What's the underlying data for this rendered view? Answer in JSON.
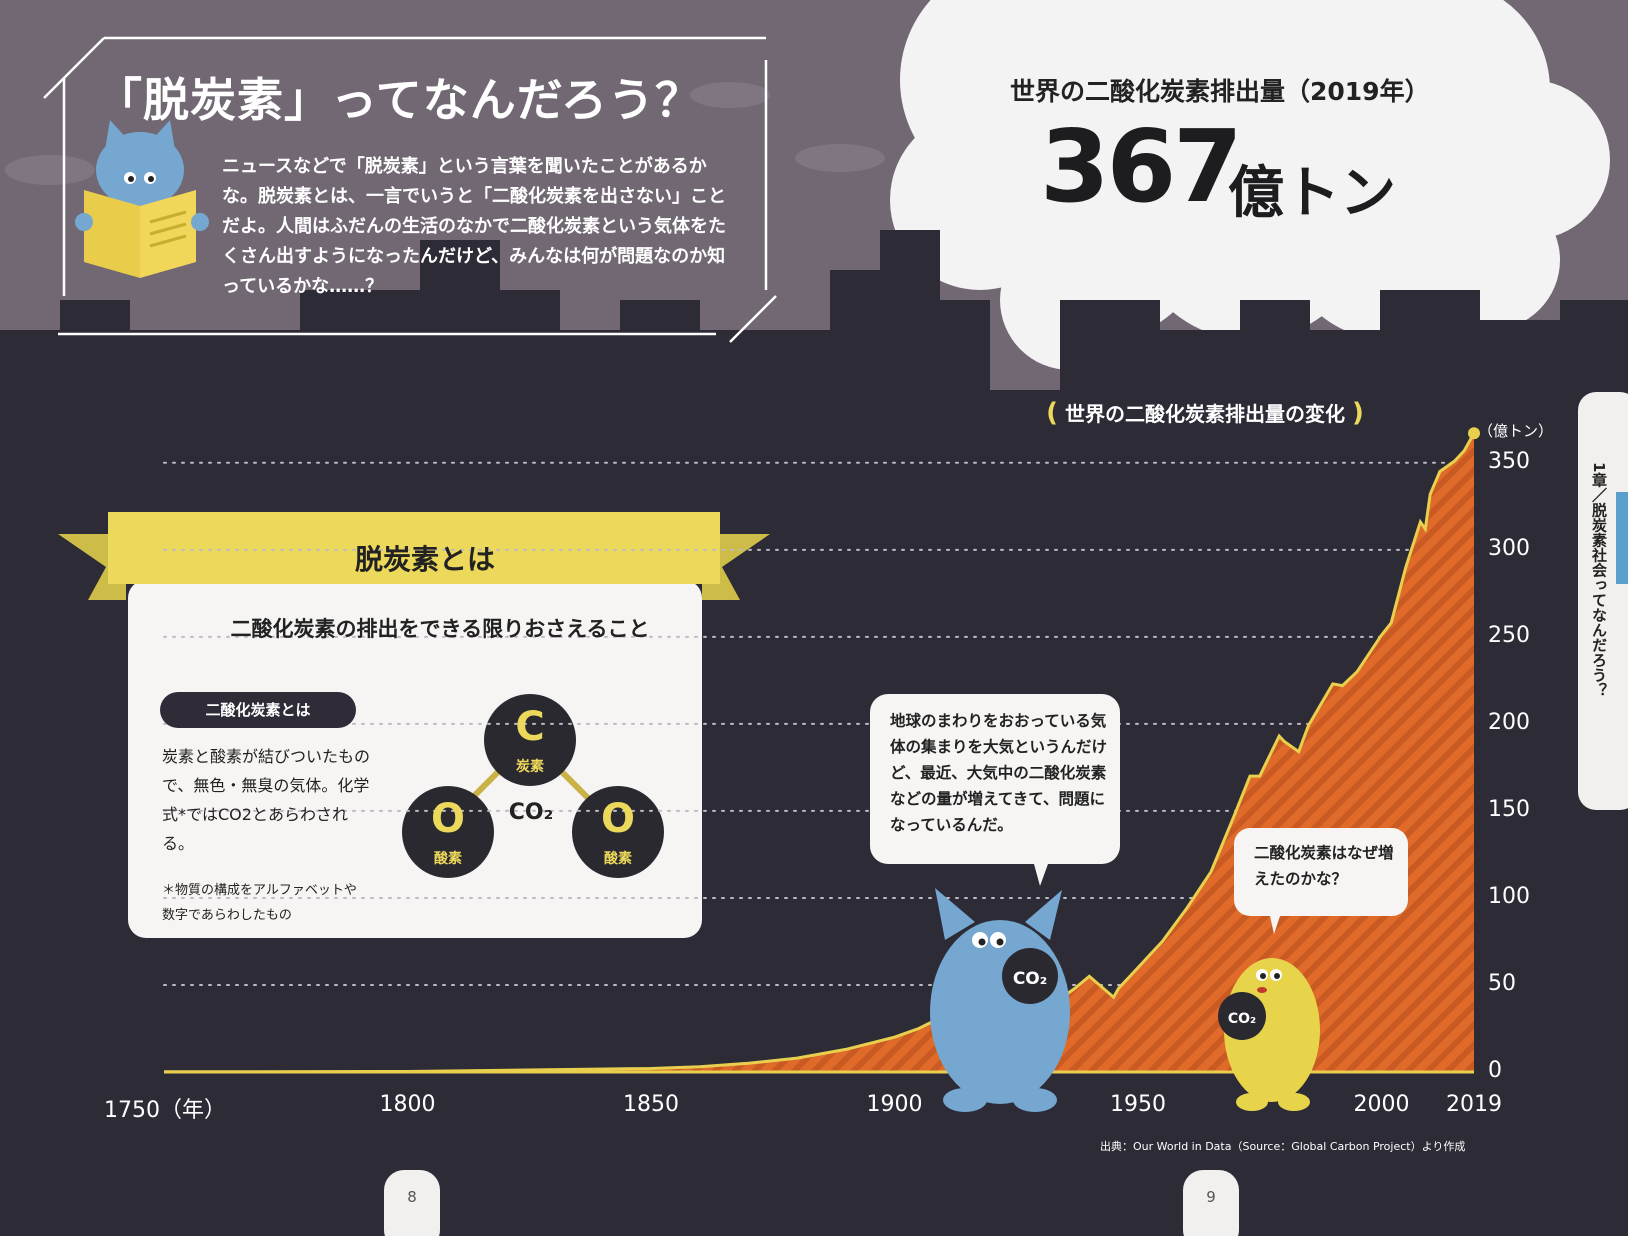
{
  "page_title": "「脱炭素」ってなんだろう？",
  "intro_text": "ニュースなどで「脱炭素」という言葉を聞いたことがあるかな。脱炭素とは、一言でいうと「二酸化炭素を出さない」ことだよ。人間はふだんの生活のなかで二酸化炭素という気体をたくさん出すようになったんだけど、みんなは何が問題なのか知っているかな……？",
  "emissions": {
    "title": "世界の二酸化炭素排出量（2019年）",
    "value": "367",
    "unit": "億トン"
  },
  "definition": {
    "ribbon_title": "脱炭素とは",
    "text": "二酸化炭素の排出をできる限りおさえること",
    "co2_pill": "二酸化炭素とは",
    "co2_text": "炭素と酸素が結びついたもので、無色・無臭の気体。化学式*ではCO2とあらわされる。",
    "co2_note": "＊物質の構成をアルファベットや数字であらわしたもの",
    "molecule": {
      "carbon_letter": "C",
      "carbon_label": "炭素",
      "oxygen_letter": "O",
      "oxygen_label": "酸素",
      "formula": "CO₂"
    }
  },
  "bubbles": {
    "blue": "地球のまわりをおおっている気体の集まりを大気というんだけど、最近、大気中の二酸化炭素などの量が増えてきて、問題になっているんだ。",
    "yellow": "二酸化炭素はなぜ増えたのかな？"
  },
  "chart_data": {
    "type": "area",
    "title": "世界の二酸化炭素排出量の変化",
    "xlabel": "1750（年）",
    "ylabel": "（億トン）",
    "x_ticks": [
      "1750（年）",
      "1800",
      "1850",
      "1900",
      "1950",
      "2000",
      "2019"
    ],
    "y_ticks": [
      "0",
      "50",
      "100",
      "150",
      "200",
      "250",
      "300",
      "350"
    ],
    "ylim": [
      0,
      370
    ],
    "xlim": [
      1750,
      2019
    ],
    "grid": "dotted horizontal",
    "x": [
      1750,
      1800,
      1850,
      1860,
      1870,
      1880,
      1890,
      1900,
      1905,
      1910,
      1913,
      1915,
      1920,
      1925,
      1929,
      1932,
      1937,
      1940,
      1945,
      1946,
      1950,
      1955,
      1960,
      1965,
      1970,
      1973,
      1975,
      1979,
      1980,
      1983,
      1985,
      1990,
      1992,
      1995,
      2000,
      2002,
      2005,
      2008,
      2009,
      2010,
      2012,
      2015,
      2017,
      2019
    ],
    "y": [
      0.1,
      0.3,
      2,
      3,
      5,
      8,
      13,
      20,
      25,
      32,
      38,
      35,
      34,
      38,
      45,
      38,
      48,
      55,
      43,
      48,
      60,
      75,
      94,
      115,
      149,
      170,
      170,
      193,
      190,
      184,
      199,
      223,
      222,
      230,
      251,
      258,
      290,
      316,
      312,
      332,
      345,
      351,
      357,
      367
    ],
    "colors": {
      "area": "#e06a2c",
      "line": "#e8d04e",
      "grid": "#bdbac4"
    }
  },
  "source": "出典：Our World in Data（Source：Global Carbon Project）より作成",
  "pages": {
    "left": "8",
    "right": "9"
  },
  "side_label": "1章／脱炭素社会ってなんだろう？"
}
